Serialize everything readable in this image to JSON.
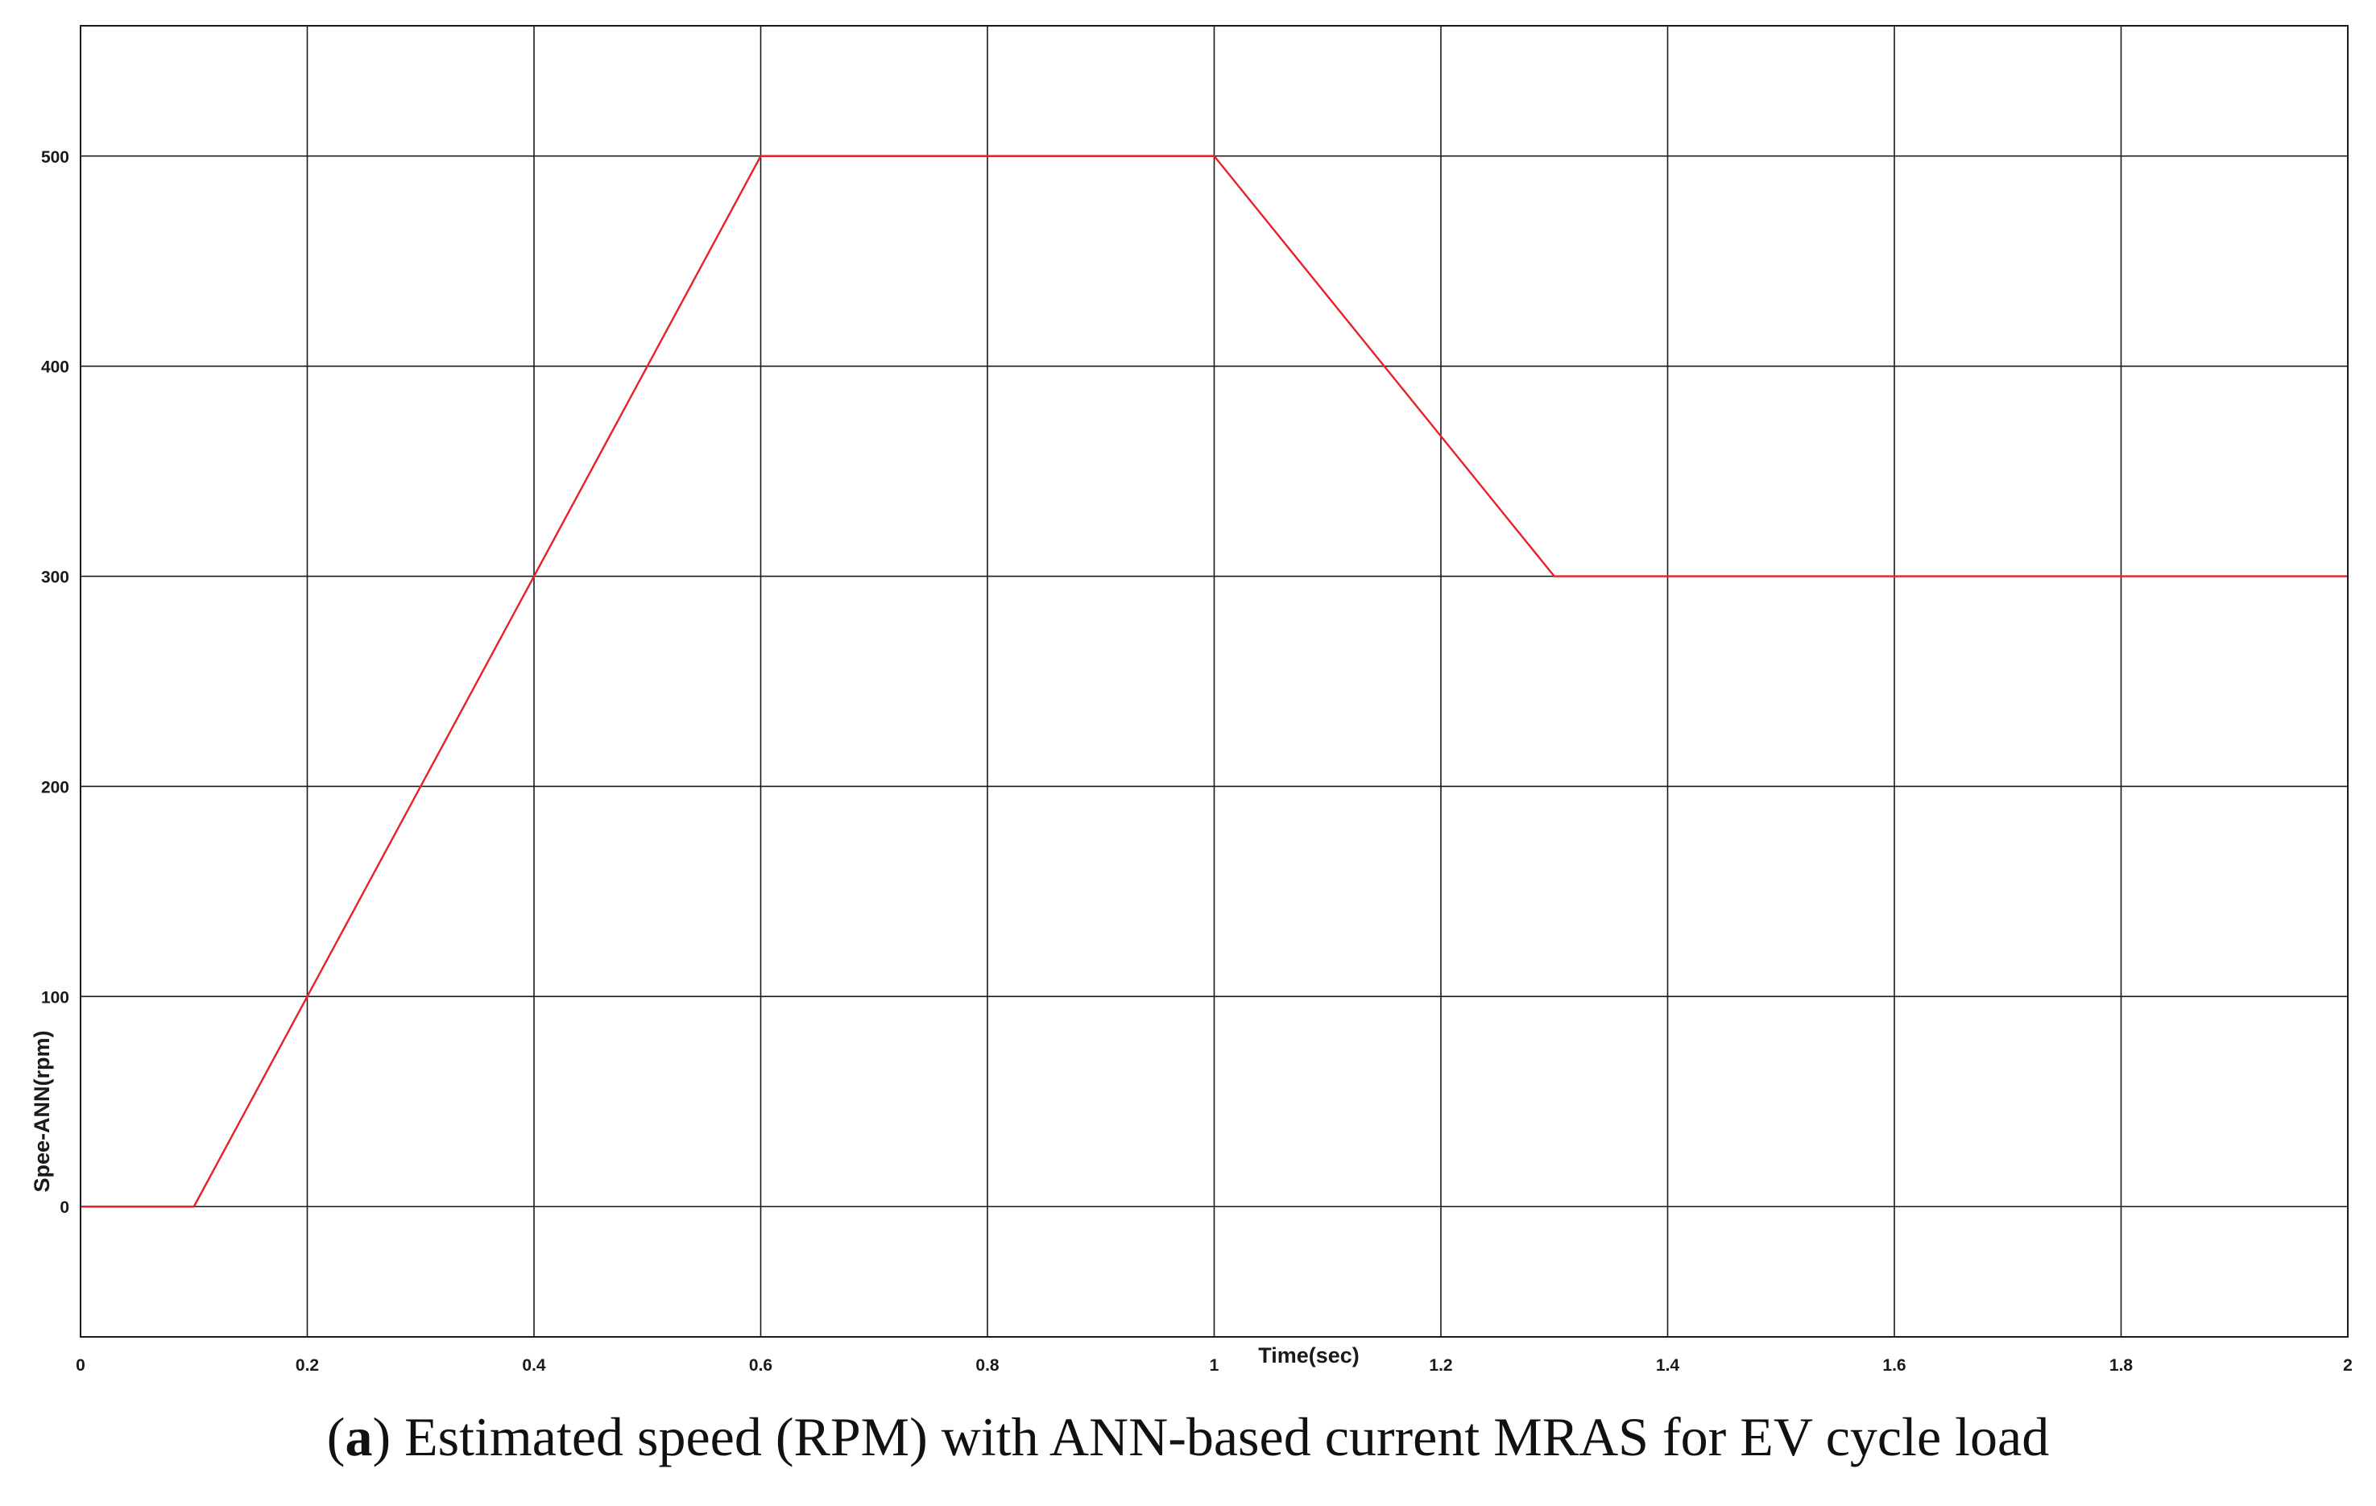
{
  "chart_data": {
    "type": "line",
    "xlabel": "Time(sec)",
    "ylabel": "Spee-ANN(rpm)",
    "xlim": [
      0,
      2
    ],
    "ylim": [
      -62,
      562
    ],
    "x_ticks": [
      0,
      0.2,
      0.4,
      0.6,
      0.8,
      1,
      1.2,
      1.4,
      1.6,
      1.8,
      2
    ],
    "y_ticks": [
      0,
      100,
      200,
      300,
      400,
      500
    ],
    "grid": true,
    "series": [
      {
        "color": "#e8202a",
        "x": [
          0,
          0.1,
          0.6,
          1.0,
          1.3,
          2.0
        ],
        "y": [
          0,
          0,
          500,
          500,
          300,
          300
        ]
      }
    ]
  },
  "caption": {
    "open_paren": "(",
    "letter": "a",
    "text": ") Estimated speed (RPM) with ANN-based current MRAS for EV cycle load"
  },
  "colors": {
    "grid": "#1a1a1a",
    "frame": "#1a1a1a",
    "line": "#e8202a"
  }
}
